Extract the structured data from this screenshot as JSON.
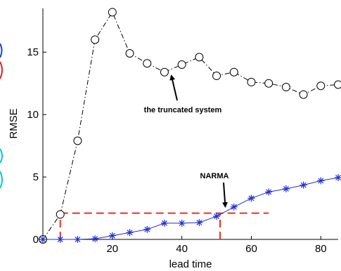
{
  "chart_data": {
    "type": "line",
    "title": "",
    "xlabel": "lead time",
    "ylabel": "RMSE",
    "xlim": [
      0,
      85
    ],
    "ylim": [
      0,
      18.5
    ],
    "xticks": [
      20,
      40,
      60,
      80
    ],
    "yticks": [
      0,
      5,
      10,
      15
    ],
    "grid": false,
    "series": [
      {
        "name": "",
        "marker": "circle",
        "line_style": "dash-dot",
        "color": "#000000",
        "x": [
          0,
          5,
          10,
          15,
          20,
          25,
          30,
          35,
          40,
          45,
          50,
          55,
          60,
          65,
          70,
          75,
          80,
          85
        ],
        "y": [
          0,
          2.0,
          7.9,
          16.0,
          18.2,
          14.9,
          14.1,
          13.4,
          14.0,
          14.6,
          13.1,
          13.4,
          12.6,
          12.5,
          12.2,
          11.6,
          12.3,
          12.4
        ]
      },
      {
        "name": "",
        "marker": "asterisk",
        "line_style": "solid",
        "color": "#1f2fd6",
        "x": [
          0,
          5,
          10,
          15,
          20,
          25,
          30,
          35,
          40,
          45,
          50,
          55,
          60,
          65,
          70,
          75,
          80,
          85
        ],
        "y": [
          0,
          0,
          0,
          0.05,
          0.3,
          0.55,
          0.8,
          1.3,
          1.3,
          1.35,
          1.85,
          2.6,
          3.3,
          3.8,
          4.05,
          4.35,
          4.7,
          4.95
        ]
      }
    ],
    "reference_lines": {
      "color": "#e8321e",
      "horizontal": {
        "y": 2.1,
        "x_from": 5,
        "x_to": 65
      },
      "vertical": [
        {
          "x": 5,
          "y_from": 0,
          "y_to": 2.1
        },
        {
          "x": 51,
          "y_from": 0,
          "y_to": 2.1
        }
      ]
    },
    "annotations": [
      {
        "text": "the truncated system",
        "target_x": 37,
        "target_y": 13.1
      },
      {
        "text": "NARMA",
        "target_x": 52.5,
        "target_y": 2.3
      }
    ]
  }
}
